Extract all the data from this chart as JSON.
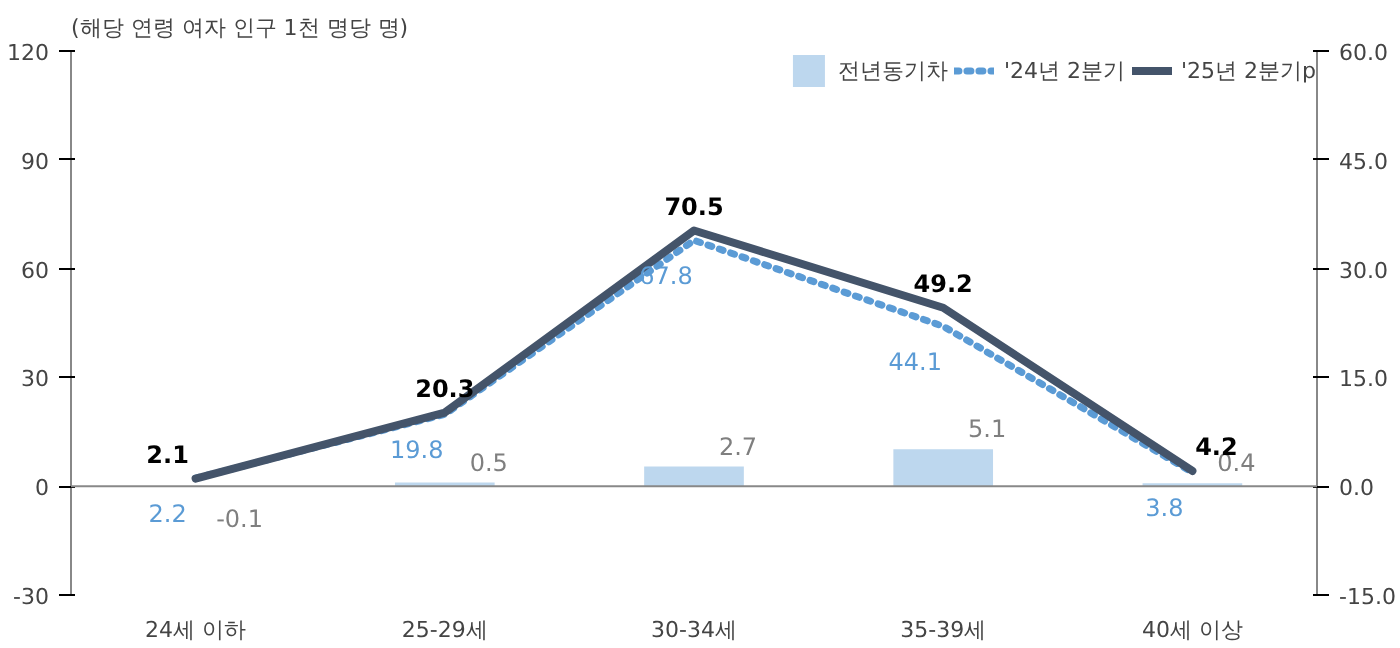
{
  "chart_data": {
    "type": "line",
    "ylabel": "(해당 연령 여자 인구 1천 명당 명)",
    "categories": [
      "24세 이하",
      "25-29세",
      "30-34세",
      "35-39세",
      "40세 이상"
    ],
    "series": [
      {
        "name": "전년동기차",
        "type": "bar",
        "axis": "y2",
        "color": "#bdd7ee",
        "values": [
          -0.1,
          0.5,
          2.7,
          5.1,
          0.4
        ]
      },
      {
        "name": "'24년 2분기",
        "line_style": "dotted",
        "color": "#5b9bd5",
        "values": [
          2.2,
          19.8,
          67.8,
          44.1,
          3.8
        ]
      },
      {
        "name": "'25년 2분기p",
        "line_style": "solid",
        "color": "#44546a",
        "values": [
          2.1,
          20.3,
          70.5,
          49.2,
          4.2
        ]
      }
    ],
    "ylim": [
      -30,
      120
    ],
    "yticks": [
      -30,
      0,
      30,
      60,
      90,
      120
    ],
    "y2lim": [
      -15,
      60
    ],
    "y2ticks": [
      {
        "value": -15,
        "label": "-15.0"
      },
      {
        "value": 0,
        "label": "0.0"
      },
      {
        "value": 15,
        "label": "15.0"
      },
      {
        "value": 30,
        "label": "30.0"
      },
      {
        "value": 45,
        "label": "45.0"
      },
      {
        "value": 60,
        "label": "60.0"
      }
    ],
    "ref_lines": [
      {
        "axis": "y",
        "value": 0,
        "color": "#888888"
      }
    ],
    "data_labels": true,
    "grid": false,
    "legend": "top"
  }
}
